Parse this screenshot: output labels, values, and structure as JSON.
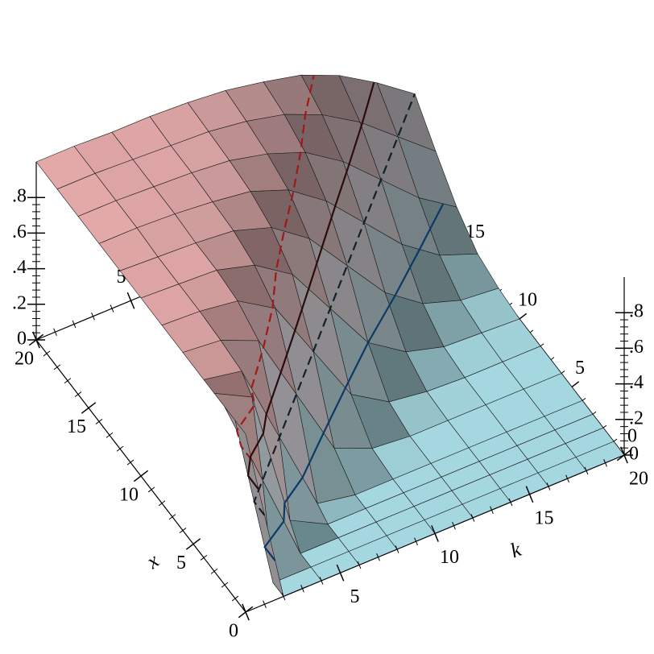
{
  "chart_data": {
    "type": "surface3d",
    "x_label": "x",
    "k_label": "k",
    "x": [
      0,
      1,
      2,
      3,
      4,
      6,
      8,
      10,
      12,
      14,
      16,
      18,
      20
    ],
    "k": [
      0,
      2,
      4,
      6,
      8,
      10,
      12,
      14,
      16,
      18,
      20
    ],
    "z": [
      [
        1.0,
        0.0,
        0.0,
        0.0,
        0.0,
        0.0,
        0.0,
        0.0,
        0.0,
        0.0,
        0.0
      ],
      [
        1.0,
        0.0,
        0.0,
        0.0,
        0.0,
        0.0,
        0.0,
        0.0,
        0.0,
        0.0,
        0.0
      ],
      [
        1.0,
        0.5,
        0.0,
        0.0,
        0.0,
        0.0,
        0.0,
        0.0,
        0.0,
        0.0,
        0.0
      ],
      [
        1.0,
        0.89,
        0.11,
        0.0,
        0.0,
        0.0,
        0.0,
        0.0,
        0.0,
        0.0,
        0.0
      ],
      [
        1.0,
        0.96,
        0.5,
        0.04,
        0.0,
        0.0,
        0.0,
        0.0,
        0.0,
        0.0,
        0.0
      ],
      [
        1.0,
        0.98,
        0.89,
        0.5,
        0.11,
        0.02,
        0.0,
        0.0,
        0.0,
        0.0,
        0.0
      ],
      [
        1.0,
        0.99,
        0.96,
        0.83,
        0.5,
        0.17,
        0.04,
        0.01,
        0.0,
        0.0,
        0.0
      ],
      [
        1.0,
        0.99,
        0.98,
        0.92,
        0.78,
        0.5,
        0.22,
        0.08,
        0.02,
        0.01,
        0.0
      ],
      [
        1.0,
        0.99,
        0.98,
        0.96,
        0.89,
        0.74,
        0.5,
        0.26,
        0.11,
        0.04,
        0.02
      ],
      [
        1.0,
        1.0,
        0.99,
        0.97,
        0.94,
        0.86,
        0.71,
        0.5,
        0.29,
        0.14,
        0.06
      ],
      [
        1.0,
        1.0,
        0.99,
        0.98,
        0.96,
        0.91,
        0.83,
        0.69,
        0.5,
        0.31,
        0.17
      ],
      [
        1.0,
        1.0,
        0.99,
        0.98,
        0.97,
        0.94,
        0.89,
        0.8,
        0.67,
        0.5,
        0.33
      ],
      [
        1.0,
        1.0,
        0.99,
        0.99,
        0.98,
        0.96,
        0.92,
        0.87,
        0.78,
        0.65,
        0.5
      ]
    ],
    "xlim": [
      0,
      20
    ],
    "klim": [
      0,
      20
    ],
    "zlim": [
      0,
      1
    ],
    "xticks": [
      0,
      5,
      10,
      15,
      20
    ],
    "kticks": [
      0,
      5,
      10,
      15,
      20
    ],
    "zticks": [
      0,
      {
        "value": 0.2,
        "label": ".2"
      },
      {
        "value": 0.4,
        "label": ".4"
      },
      {
        "value": 0.6,
        "label": ".6"
      },
      {
        "value": 0.8,
        "label": ".8"
      }
    ],
    "color_high": "#f7b7b7",
    "color_low": "#b3eaf3",
    "contours": [
      {
        "level": 0.84,
        "color": "#a01818",
        "dashed": true
      },
      {
        "level": 0.66,
        "color": "#2a0c0c",
        "dashed": false
      },
      {
        "level": 0.5,
        "color": "#10202c",
        "dashed": true
      },
      {
        "level": 0.22,
        "color": "#0b3a66",
        "dashed": false
      }
    ]
  }
}
